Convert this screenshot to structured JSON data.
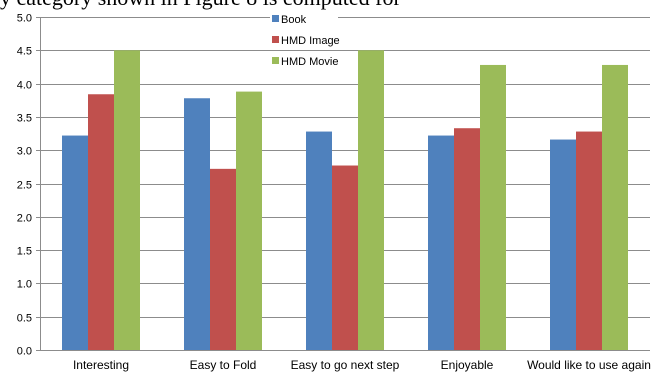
{
  "page": {
    "partial_top_text": "y category shown in Figure 8 is computed for"
  },
  "chart_data": {
    "type": "bar",
    "title": "",
    "xlabel": "",
    "ylabel": "",
    "ylim": [
      0,
      5.0
    ],
    "yticks": [
      "0.0",
      "0.5",
      "1.0",
      "1.5",
      "2.0",
      "2.5",
      "3.0",
      "3.5",
      "4.0",
      "4.5",
      "5.0"
    ],
    "grid": true,
    "legend_position": "top-center",
    "categories": [
      "Interesting",
      "Easy to Fold",
      "Easy to go next step",
      "Enjoyable",
      "Would like to use again"
    ],
    "series": [
      {
        "name": "Book",
        "color": "#4F81BD",
        "values": [
          3.22,
          3.78,
          3.28,
          3.22,
          3.16
        ]
      },
      {
        "name": "HMD Image",
        "color": "#C0504D",
        "values": [
          3.84,
          2.72,
          2.77,
          3.33,
          3.28
        ]
      },
      {
        "name": "HMD Movie",
        "color": "#9BBB59",
        "values": [
          4.5,
          3.88,
          4.5,
          4.28,
          4.28
        ]
      }
    ]
  }
}
